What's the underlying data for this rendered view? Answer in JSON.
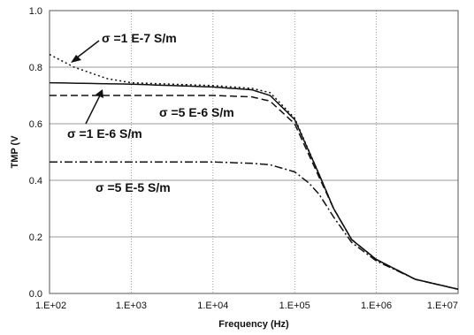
{
  "chart_data": {
    "type": "line",
    "xlabel": "Frequency (Hz)",
    "ylabel": "TMP (V",
    "xscale": "log",
    "xlim": [
      100,
      10000000
    ],
    "ylim": [
      0,
      1.0
    ],
    "xticks": [
      "1.E+02",
      "1.E+03",
      "1.E+04",
      "1.E+05",
      "1.E+06",
      "1.E+07"
    ],
    "yticks": [
      "0.0",
      "0.2",
      "0.4",
      "0.6",
      "0.8",
      "1.0"
    ],
    "grid": "dotted vertical at decades",
    "series": [
      {
        "name": "σ =1 E-7 S/m",
        "style": "dotted",
        "x": [
          100,
          200,
          500,
          1000,
          3000,
          10000,
          30000,
          50000,
          100000,
          200000,
          300000,
          500000,
          1000000,
          3000000,
          10000000
        ],
        "y": [
          0.845,
          0.8,
          0.76,
          0.745,
          0.74,
          0.735,
          0.725,
          0.71,
          0.62,
          0.42,
          0.3,
          0.19,
          0.12,
          0.05,
          0.015
        ]
      },
      {
        "name": "σ =1 E-6 S/m",
        "style": "solid",
        "x": [
          100,
          1000,
          10000,
          30000,
          50000,
          100000,
          200000,
          300000,
          500000,
          1000000,
          3000000,
          10000000
        ],
        "y": [
          0.745,
          0.74,
          0.73,
          0.72,
          0.7,
          0.615,
          0.42,
          0.3,
          0.19,
          0.12,
          0.05,
          0.015
        ]
      },
      {
        "name": "σ =5 E-6 S/m",
        "style": "dashed",
        "x": [
          100,
          1000,
          10000,
          30000,
          50000,
          100000,
          200000,
          300000,
          500000,
          1000000,
          3000000,
          10000000
        ],
        "y": [
          0.7,
          0.7,
          0.7,
          0.695,
          0.68,
          0.6,
          0.41,
          0.3,
          0.19,
          0.12,
          0.05,
          0.015
        ]
      },
      {
        "name": "σ =5 E-5 S/m",
        "style": "dashdot",
        "x": [
          100,
          1000,
          10000,
          30000,
          50000,
          100000,
          150000,
          200000,
          300000,
          500000,
          1000000,
          3000000,
          10000000
        ],
        "y": [
          0.465,
          0.465,
          0.465,
          0.46,
          0.455,
          0.43,
          0.39,
          0.35,
          0.27,
          0.18,
          0.115,
          0.05,
          0.015
        ]
      }
    ]
  }
}
